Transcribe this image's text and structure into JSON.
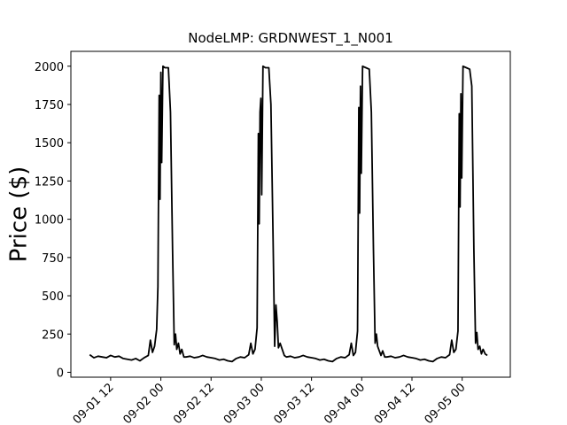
{
  "chart_data": {
    "type": "line",
    "title": "NodeLMP: GRDNWEST_1_N001",
    "y_label": "Price ($)",
    "color": "#000000",
    "x": [
      7,
      8,
      9,
      10,
      11,
      12,
      13,
      14,
      15,
      16,
      17,
      18,
      19,
      20,
      21,
      21.5,
      22,
      22.5,
      23,
      23.3,
      23.6,
      23.8,
      24,
      24.2,
      24.5,
      25,
      25.8,
      26.3,
      26.8,
      27.2,
      27.5,
      27.8,
      28.2,
      28.6,
      29,
      29.5,
      30,
      31,
      32,
      33,
      34,
      35,
      36,
      37,
      38,
      39,
      40,
      41,
      42,
      43,
      44,
      45,
      45.5,
      46,
      46.5,
      47,
      47.3,
      47.5,
      47.7,
      47.9,
      48.1,
      48.4,
      49,
      49.8,
      50.3,
      50.8,
      51.2,
      51.5,
      51.8,
      52.1,
      52.5,
      53,
      53.5,
      54,
      55,
      56,
      57,
      58,
      59,
      60,
      61,
      62,
      63,
      64,
      65,
      66,
      67,
      68,
      69,
      69.5,
      70,
      70.5,
      71,
      71.3,
      71.5,
      71.7,
      71.9,
      72.2,
      73,
      73.8,
      74.3,
      74.8,
      75.2,
      75.5,
      75.8,
      76.2,
      76.6,
      77,
      77.5,
      78,
      79,
      80,
      81,
      82,
      83,
      84,
      85,
      86,
      87,
      88,
      89,
      90,
      91,
      92,
      93,
      93.5,
      94,
      94.5,
      95,
      95.3,
      95.5,
      95.7,
      95.9,
      96.2,
      97,
      97.8,
      98.3,
      98.8,
      99.2,
      99.5,
      99.8,
      100.2,
      100.6,
      101,
      101.5,
      102
    ],
    "values": [
      115,
      95,
      105,
      100,
      95,
      110,
      100,
      105,
      90,
      85,
      80,
      90,
      75,
      95,
      110,
      210,
      130,
      170,
      280,
      560,
      1810,
      1130,
      1960,
      1370,
      2000,
      1990,
      1990,
      1700,
      800,
      180,
      250,
      150,
      190,
      120,
      150,
      100,
      100,
      105,
      95,
      100,
      110,
      100,
      95,
      90,
      80,
      85,
      75,
      70,
      90,
      100,
      95,
      115,
      190,
      120,
      150,
      290,
      1560,
      970,
      1700,
      1790,
      1160,
      2000,
      1990,
      1990,
      1750,
      900,
      170,
      440,
      330,
      160,
      190,
      150,
      110,
      100,
      105,
      95,
      100,
      110,
      100,
      95,
      90,
      80,
      85,
      75,
      70,
      90,
      100,
      95,
      115,
      190,
      110,
      130,
      270,
      1730,
      1040,
      1870,
      1300,
      2000,
      1990,
      1980,
      1700,
      800,
      190,
      250,
      170,
      140,
      110,
      140,
      100,
      100,
      105,
      95,
      100,
      110,
      100,
      95,
      90,
      80,
      85,
      75,
      70,
      90,
      100,
      95,
      115,
      210,
      130,
      150,
      270,
      1690,
      1080,
      1820,
      1270,
      2000,
      1990,
      1980,
      1870,
      800,
      190,
      260,
      150,
      170,
      120,
      150,
      120,
      110
    ],
    "xlim": [
      2.5,
      107.5
    ],
    "xticks": [
      {
        "value": 12,
        "label": "09-01 12"
      },
      {
        "value": 24,
        "label": "09-02 00"
      },
      {
        "value": 36,
        "label": "09-02 12"
      },
      {
        "value": 48,
        "label": "09-03 00"
      },
      {
        "value": 60,
        "label": "09-03 12"
      },
      {
        "value": 72,
        "label": "09-04 00"
      },
      {
        "value": 84,
        "label": "09-04 12"
      },
      {
        "value": 96,
        "label": "09-05 00"
      }
    ],
    "ylim": [
      -32,
      2097
    ],
    "yticks": [
      0,
      250,
      500,
      750,
      1000,
      1250,
      1500,
      1750,
      2000
    ]
  }
}
